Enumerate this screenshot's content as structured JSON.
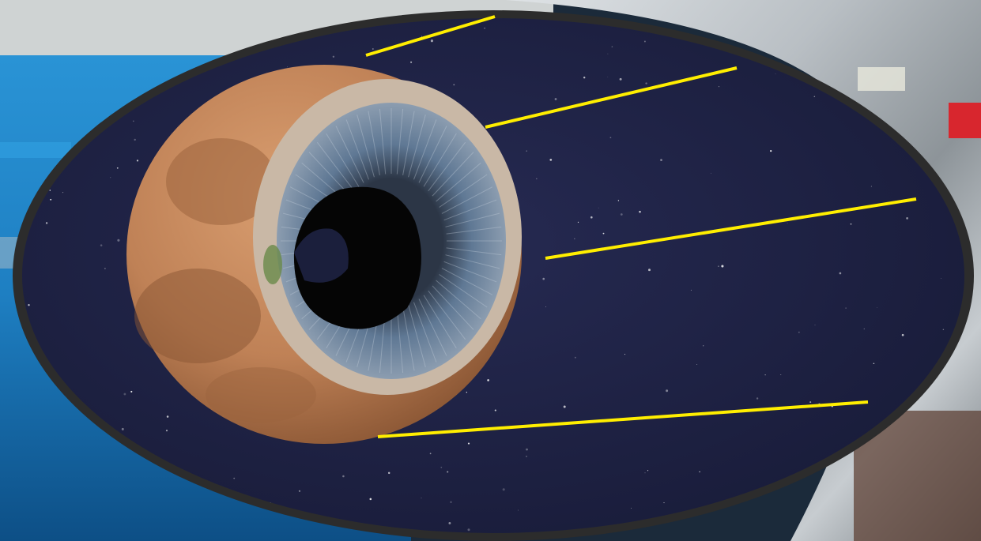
{
  "scene": {
    "background_left": "blue-industrial-machinery",
    "background_right": "silver-metal-cylinder",
    "frame": "dark-gray-oval-frame",
    "inset": "starry-night-sky",
    "subject": "moon-with-eye-like-crater",
    "annotations": "yellow-callout-lines"
  },
  "colors": {
    "machine_blue": "#1e7fc2",
    "machine_blue_dark": "#0d4f86",
    "metal_silver": "#b9bfc4",
    "metal_silver_dark": "#7c8388",
    "frame_gray": "#2c2c2c",
    "sky_navy": "#1c1f3f",
    "moon_tan": "#c88a5c",
    "moon_brown": "#8a5634",
    "iris_blue": "#5f7894",
    "pupil_black": "#050505",
    "callout_yellow": "#ffee00"
  },
  "callout_lines": [
    {
      "id": "line-1"
    },
    {
      "id": "line-2"
    },
    {
      "id": "line-3"
    },
    {
      "id": "line-4"
    }
  ]
}
